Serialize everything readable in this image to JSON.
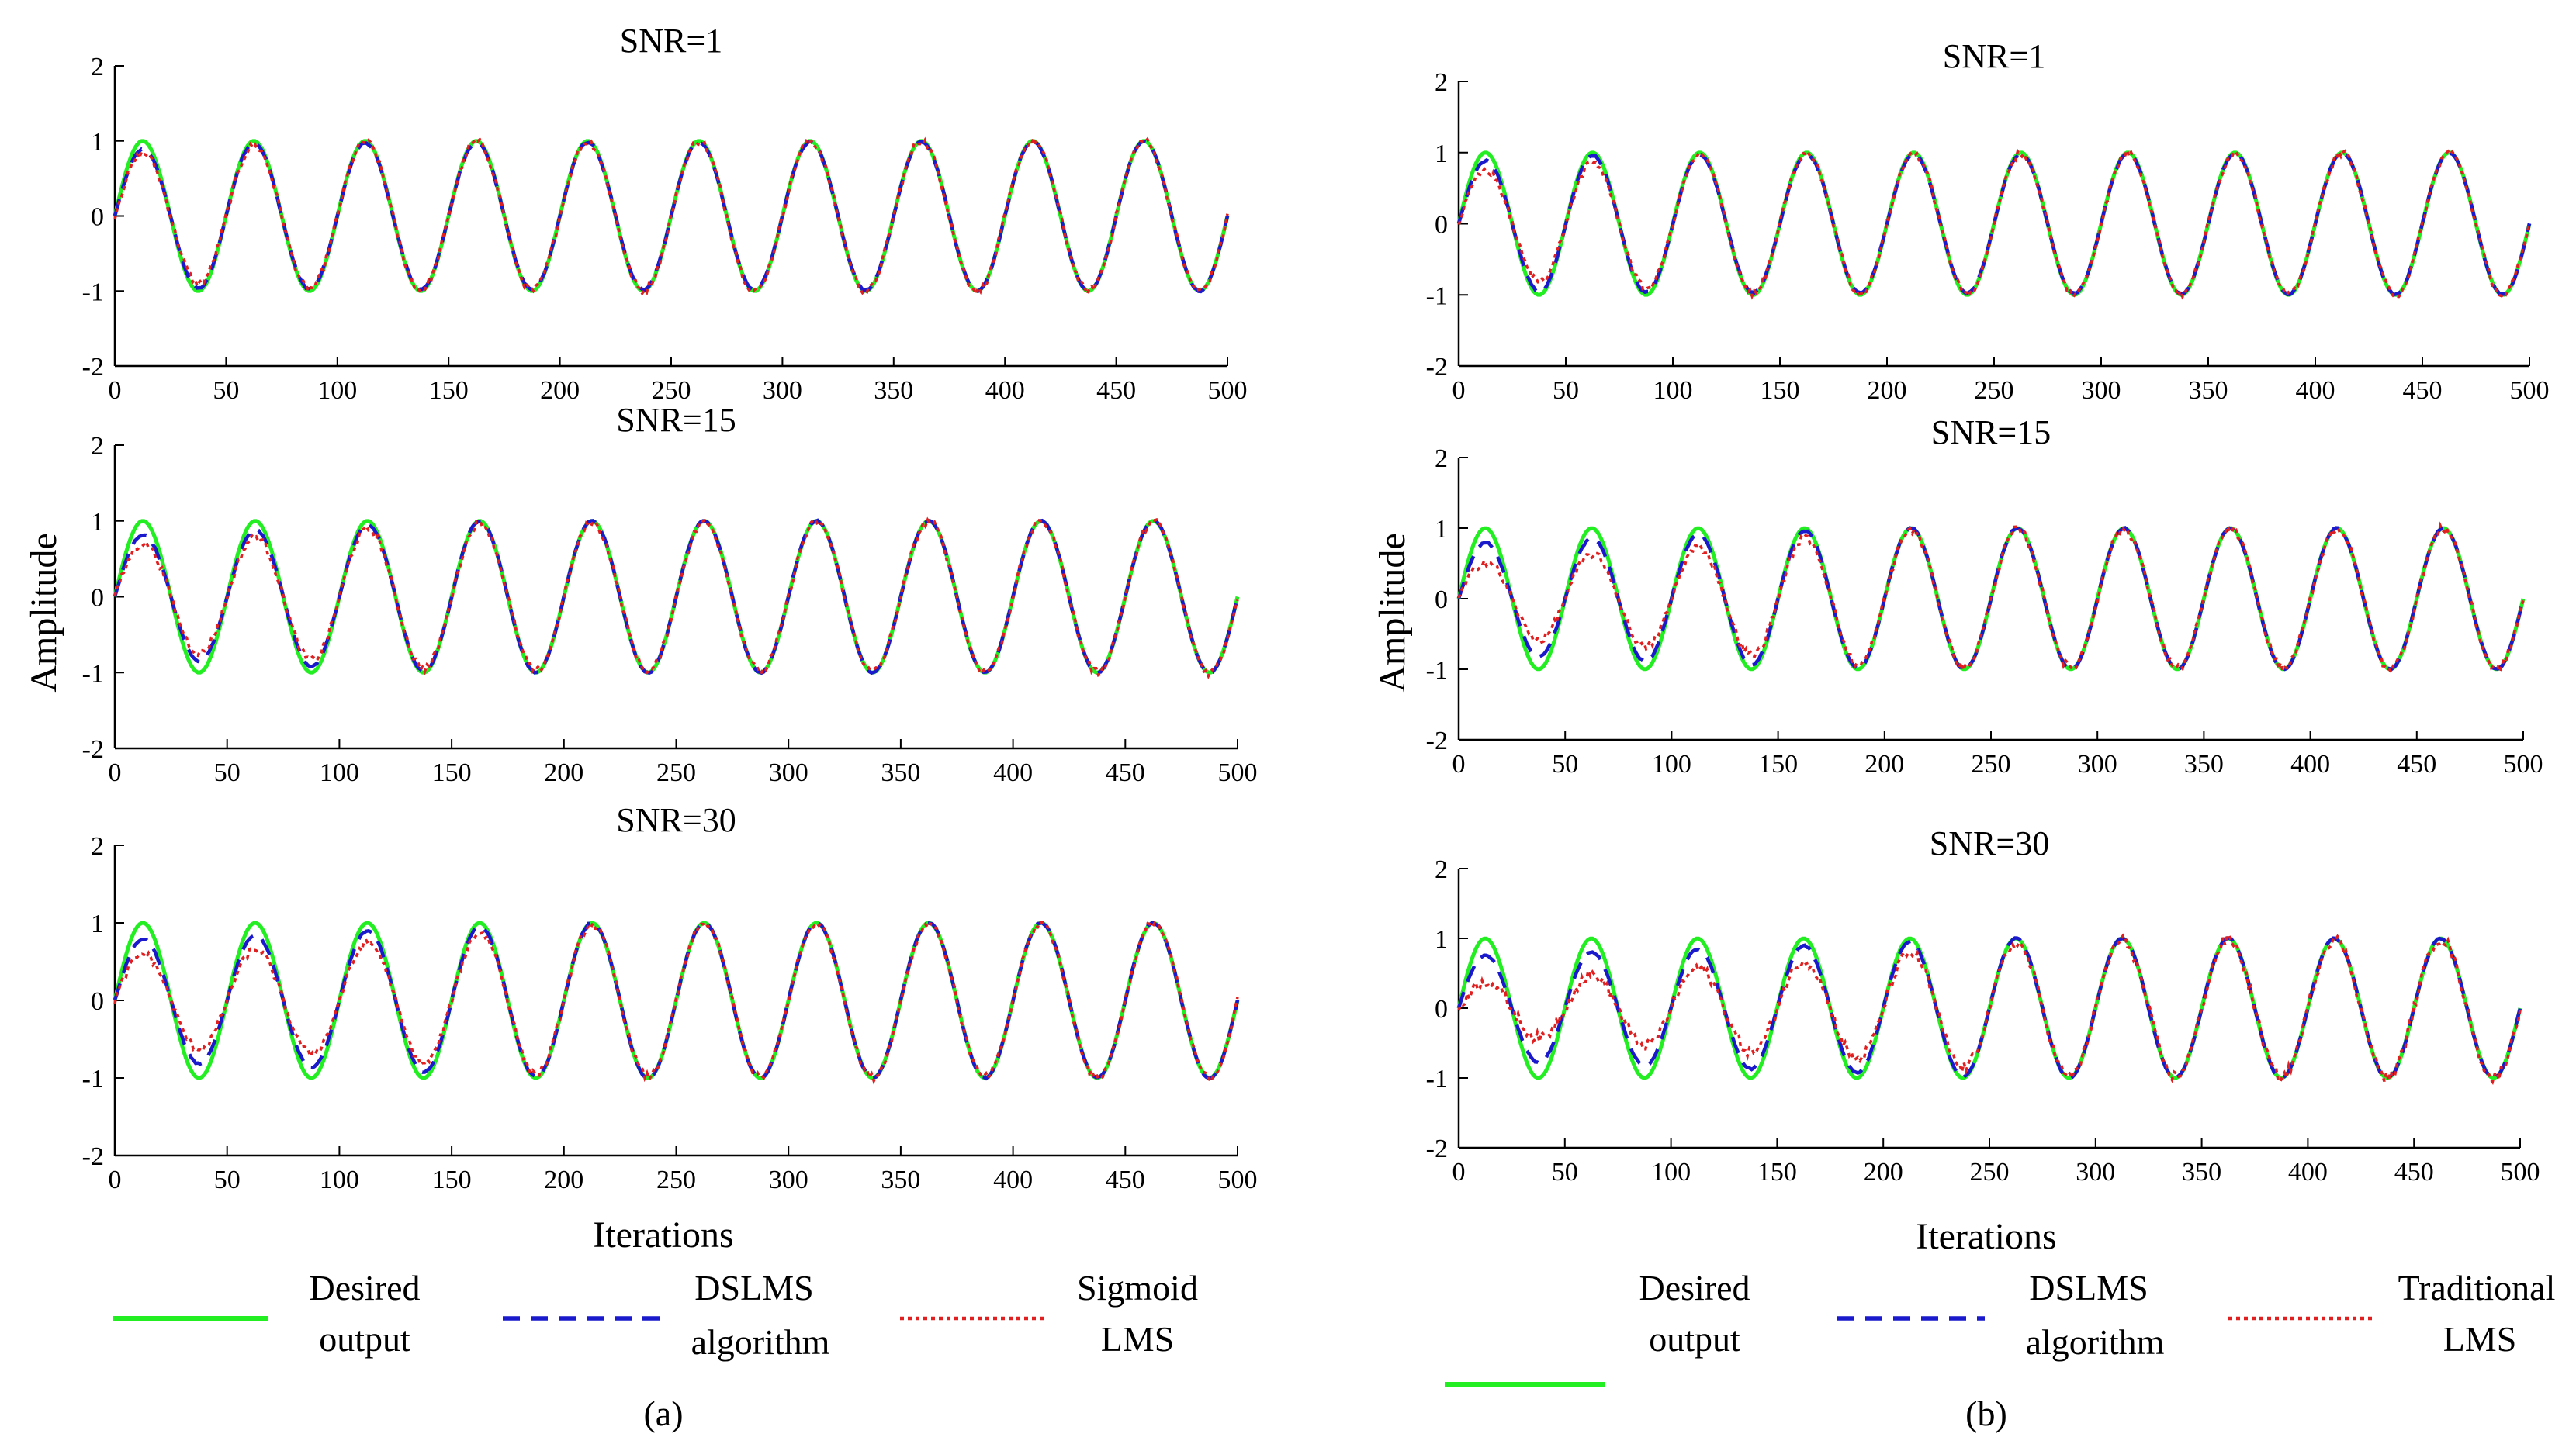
{
  "figure": {
    "ylabel": "Amplitude",
    "xlabel": "Iterations",
    "colors": {
      "desired": "#22ee22",
      "dslms": "#1a1acc",
      "third": "#e02020"
    }
  },
  "chart_data": [
    {
      "type": "line",
      "panel": "a",
      "caption": "(a)",
      "title": "SNR=1",
      "xlabel": "",
      "ylabel": "",
      "xlim": [
        0,
        500
      ],
      "ylim": [
        -2,
        2
      ],
      "xticks": [
        0,
        50,
        100,
        150,
        200,
        250,
        300,
        350,
        400,
        450,
        500
      ],
      "yticks": [
        -2,
        -1,
        0,
        1,
        2
      ],
      "period": 50,
      "samples_from": 0,
      "samples_to": 500,
      "series": [
        {
          "name": "Desired output",
          "style": "solid",
          "color": "#22ee22",
          "amp": [
            [
              0,
              1.0
            ],
            [
              500,
              1.0
            ]
          ],
          "noise": 0
        },
        {
          "name": "DSLMS algorithm",
          "style": "dashed",
          "color": "#1a1acc",
          "amp": [
            [
              0,
              0.85
            ],
            [
              40,
              0.97
            ],
            [
              500,
              1.0
            ]
          ],
          "noise": 0.01
        },
        {
          "name": "Sigmoid LMS",
          "style": "dotted",
          "color": "#e02020",
          "amp": [
            [
              0,
              0.8
            ],
            [
              40,
              0.9
            ],
            [
              100,
              0.99
            ],
            [
              500,
              1.0
            ]
          ],
          "noise": 0.05
        }
      ]
    },
    {
      "type": "line",
      "panel": "a",
      "caption": "(a)",
      "title": "SNR=15",
      "xlabel": "",
      "ylabel": "Amplitude",
      "xlim": [
        0,
        500
      ],
      "ylim": [
        -2,
        2
      ],
      "xticks": [
        0,
        50,
        100,
        150,
        200,
        250,
        300,
        350,
        400,
        450,
        500
      ],
      "yticks": [
        -2,
        -1,
        0,
        1,
        2
      ],
      "period": 50,
      "samples_from": 0,
      "samples_to": 500,
      "series": [
        {
          "name": "Desired output",
          "style": "solid",
          "color": "#22ee22",
          "amp": [
            [
              0,
              1.0
            ],
            [
              500,
              1.0
            ]
          ],
          "noise": 0
        },
        {
          "name": "DSLMS algorithm",
          "style": "dashed",
          "color": "#1a1acc",
          "amp": [
            [
              0,
              0.8
            ],
            [
              60,
              0.88
            ],
            [
              150,
              1.0
            ],
            [
              500,
              1.0
            ]
          ],
          "noise": 0.01
        },
        {
          "name": "Sigmoid LMS",
          "style": "dotted",
          "color": "#e02020",
          "amp": [
            [
              0,
              0.68
            ],
            [
              60,
              0.78
            ],
            [
              150,
              0.97
            ],
            [
              500,
              1.0
            ]
          ],
          "noise": 0.05
        }
      ]
    },
    {
      "type": "line",
      "panel": "a",
      "caption": "(a)",
      "title": "SNR=30",
      "xlabel": "Iterations",
      "ylabel": "",
      "xlim": [
        0,
        500
      ],
      "ylim": [
        -2,
        2
      ],
      "xticks": [
        0,
        50,
        100,
        150,
        200,
        250,
        300,
        350,
        400,
        450,
        500
      ],
      "yticks": [
        -2,
        -1,
        0,
        1,
        2
      ],
      "period": 50,
      "samples_from": 0,
      "samples_to": 500,
      "series": [
        {
          "name": "Desired output",
          "style": "solid",
          "color": "#22ee22",
          "amp": [
            [
              0,
              1.0
            ],
            [
              500,
              1.0
            ]
          ],
          "noise": 0
        },
        {
          "name": "DSLMS algorithm",
          "style": "dashed",
          "color": "#1a1acc",
          "amp": [
            [
              0,
              0.78
            ],
            [
              100,
              0.88
            ],
            [
              200,
              1.0
            ],
            [
              500,
              1.0
            ]
          ],
          "noise": 0.01
        },
        {
          "name": "Sigmoid LMS",
          "style": "dotted",
          "color": "#e02020",
          "amp": [
            [
              0,
              0.58
            ],
            [
              100,
              0.7
            ],
            [
              200,
              0.98
            ],
            [
              500,
              1.0
            ]
          ],
          "noise": 0.05
        }
      ]
    },
    {
      "type": "line",
      "panel": "b",
      "caption": "(b)",
      "title": "SNR=1",
      "xlabel": "",
      "ylabel": "",
      "xlim": [
        0,
        500
      ],
      "ylim": [
        -2,
        2
      ],
      "xticks": [
        0,
        50,
        100,
        150,
        200,
        250,
        300,
        350,
        400,
        450,
        500
      ],
      "yticks": [
        -2,
        -1,
        0,
        1,
        2
      ],
      "period": 50,
      "samples_from": 0,
      "samples_to": 500,
      "series": [
        {
          "name": "Desired output",
          "style": "solid",
          "color": "#22ee22",
          "amp": [
            [
              0,
              1.0
            ],
            [
              500,
              1.0
            ]
          ],
          "noise": 0
        },
        {
          "name": "DSLMS algorithm",
          "style": "dashed",
          "color": "#1a1acc",
          "amp": [
            [
              0,
              0.85
            ],
            [
              40,
              0.96
            ],
            [
              500,
              1.0
            ]
          ],
          "noise": 0.01
        },
        {
          "name": "Traditional LMS",
          "style": "dotted",
          "color": "#e02020",
          "amp": [
            [
              0,
              0.72
            ],
            [
              60,
              0.85
            ],
            [
              120,
              0.98
            ],
            [
              500,
              1.0
            ]
          ],
          "noise": 0.05
        }
      ]
    },
    {
      "type": "line",
      "panel": "b",
      "caption": "(b)",
      "title": "SNR=15",
      "xlabel": "",
      "ylabel": "Amplitude",
      "xlim": [
        0,
        500
      ],
      "ylim": [
        -2,
        2
      ],
      "xticks": [
        0,
        50,
        100,
        150,
        200,
        250,
        300,
        350,
        400,
        450,
        500
      ],
      "yticks": [
        -2,
        -1,
        0,
        1,
        2
      ],
      "period": 50,
      "samples_from": 0,
      "samples_to": 500,
      "series": [
        {
          "name": "Desired output",
          "style": "solid",
          "color": "#22ee22",
          "amp": [
            [
              0,
              1.0
            ],
            [
              500,
              1.0
            ]
          ],
          "noise": 0
        },
        {
          "name": "DSLMS algorithm",
          "style": "dashed",
          "color": "#1a1acc",
          "amp": [
            [
              0,
              0.78
            ],
            [
              100,
              0.9
            ],
            [
              200,
              1.0
            ],
            [
              500,
              1.0
            ]
          ],
          "noise": 0.01
        },
        {
          "name": "Traditional LMS",
          "style": "dotted",
          "color": "#e02020",
          "amp": [
            [
              0,
              0.5
            ],
            [
              100,
              0.7
            ],
            [
              200,
              0.97
            ],
            [
              500,
              1.0
            ]
          ],
          "noise": 0.06
        }
      ]
    },
    {
      "type": "line",
      "panel": "b",
      "caption": "(b)",
      "title": "SNR=30",
      "xlabel": "Iterations",
      "ylabel": "",
      "xlim": [
        0,
        500
      ],
      "ylim": [
        -2,
        2
      ],
      "xticks": [
        0,
        50,
        100,
        150,
        200,
        250,
        300,
        350,
        400,
        450,
        500
      ],
      "yticks": [
        -2,
        -1,
        0,
        1,
        2
      ],
      "period": 50,
      "samples_from": 0,
      "samples_to": 500,
      "series": [
        {
          "name": "Desired output",
          "style": "solid",
          "color": "#22ee22",
          "amp": [
            [
              0,
              1.0
            ],
            [
              500,
              1.0
            ]
          ],
          "noise": 0
        },
        {
          "name": "DSLMS algorithm",
          "style": "dashed",
          "color": "#1a1acc",
          "amp": [
            [
              0,
              0.75
            ],
            [
              150,
              0.88
            ],
            [
              250,
              1.0
            ],
            [
              500,
              1.0
            ]
          ],
          "noise": 0.01
        },
        {
          "name": "Traditional LMS",
          "style": "dotted",
          "color": "#e02020",
          "amp": [
            [
              0,
              0.35
            ],
            [
              100,
              0.55
            ],
            [
              200,
              0.75
            ],
            [
              280,
              0.97
            ],
            [
              500,
              1.0
            ]
          ],
          "noise": 0.08
        }
      ]
    }
  ],
  "legends": {
    "a": [
      {
        "line1": "Desired",
        "line2": "output",
        "style": "solid",
        "color": "#22ee22"
      },
      {
        "line1": "DSLMS",
        "line2": "algorithm",
        "style": "dashed",
        "color": "#1a1acc"
      },
      {
        "line1": "Sigmoid",
        "line2": "LMS",
        "style": "dotted",
        "color": "#e02020"
      }
    ],
    "b": [
      {
        "line1": "Desired",
        "line2": "output",
        "style": "solid",
        "color": "#22ee22"
      },
      {
        "line1": "DSLMS",
        "line2": "algorithm",
        "style": "dashed",
        "color": "#1a1acc"
      },
      {
        "line1": "Traditional",
        "line2": "LMS",
        "style": "dotted",
        "color": "#e02020"
      }
    ]
  },
  "captions": {
    "a": "(a)",
    "b": "(b)"
  }
}
